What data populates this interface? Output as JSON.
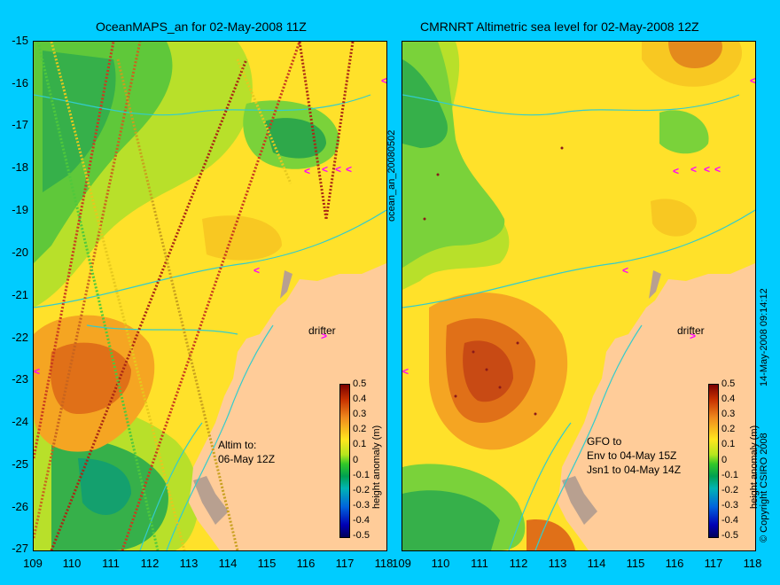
{
  "left_panel": {
    "title": "OceanMAPS_an for 02-May-2008 11Z",
    "altim_note": "Altim to:\n06-May 12Z",
    "drifter_label": "drifter"
  },
  "right_panel": {
    "title": "CMRNRT Altimetric sea level  for 02-May-2008 12Z",
    "gfo_note": "GFO to\nEnv to 04-May 15Z\nJsn1 to 04-May 14Z",
    "drifter_label": "drifter"
  },
  "axes": {
    "y_ticks": [
      "-15",
      "-16",
      "-17",
      "-18",
      "-19",
      "-20",
      "-21",
      "-22",
      "-23",
      "-24",
      "-25",
      "-26",
      "-27"
    ],
    "x_ticks": [
      "109",
      "110",
      "111",
      "112",
      "113",
      "114",
      "115",
      "116",
      "117",
      "118"
    ]
  },
  "colorbar": {
    "label": "height anomaly (m)",
    "ticks": [
      "0.5",
      "0.4",
      "0.3",
      "0.2",
      "0.1",
      "0",
      "-0.1",
      "-0.2",
      "-0.3",
      "-0.4",
      "-0.5"
    ],
    "range": [
      -0.5,
      0.5
    ]
  },
  "side_labels": {
    "run_id": "ocean_an_20080502",
    "date_stamp": "14-May-2008 09:14:12",
    "copyright": "© Copyright CSIRO 2008"
  },
  "colors": {
    "frame_background": "#00ccff",
    "land": "#ffcc99",
    "coastline_contour": "#33cccc",
    "drifter_marker": "#ff00ff"
  }
}
